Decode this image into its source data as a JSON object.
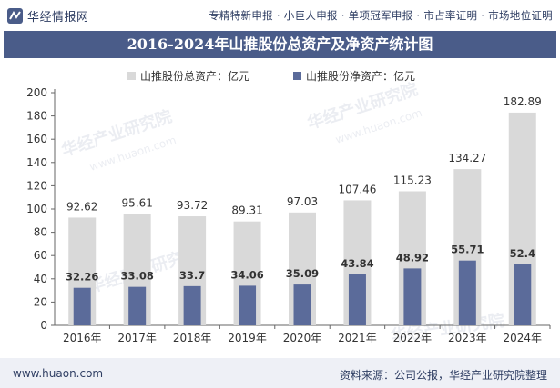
{
  "header": {
    "logo_text": "华经情报网",
    "tagline": "专精特新申报 · 小巨人申报 · 单项冠军申报 · 市占率证明 · 市场地位证明"
  },
  "title": "2016-2024年山推股份总资产及净资产统计图",
  "footer": {
    "url": "www.huaon.com",
    "source": "资料来源：公司公报，华经产业研究院整理"
  },
  "watermark": {
    "text": "华经产业研究院",
    "url": "www.huaon.com"
  },
  "colors": {
    "total_assets": "#d9d9d9",
    "net_assets": "#5b6b9a",
    "title_bg": "#4a5c89"
  },
  "chart_data": {
    "type": "bar",
    "title": "2016-2024年山推股份总资产及净资产统计图",
    "categories": [
      "2016年",
      "2017年",
      "2018年",
      "2019年",
      "2020年",
      "2021年",
      "2022年",
      "2023年",
      "2024年"
    ],
    "series": [
      {
        "name": "山推股份总资产：亿元",
        "values": [
          92.62,
          95.61,
          93.72,
          89.31,
          97.03,
          107.46,
          115.23,
          134.27,
          182.89
        ],
        "labels": [
          "92.62",
          "95.61",
          "93.72",
          "89.31",
          "97.03",
          "107.46",
          "115.23",
          "134.27",
          "182.89"
        ]
      },
      {
        "name": "山推股份净资产：亿元",
        "values": [
          32.26,
          33.08,
          33.7,
          34.06,
          35.09,
          43.84,
          48.92,
          55.71,
          52.4
        ],
        "labels": [
          "32.26",
          "33.08",
          "33.7",
          "34.06",
          "35.09",
          "43.84",
          "48.92",
          "55.71",
          "52.4"
        ]
      }
    ],
    "yticks": [
      "0",
      "20",
      "40",
      "60",
      "80",
      "100",
      "120",
      "140",
      "160",
      "180",
      "200"
    ],
    "ylim": [
      0,
      200
    ],
    "legend_position": "top-center",
    "grid": false,
    "xlabel": "",
    "ylabel": ""
  }
}
